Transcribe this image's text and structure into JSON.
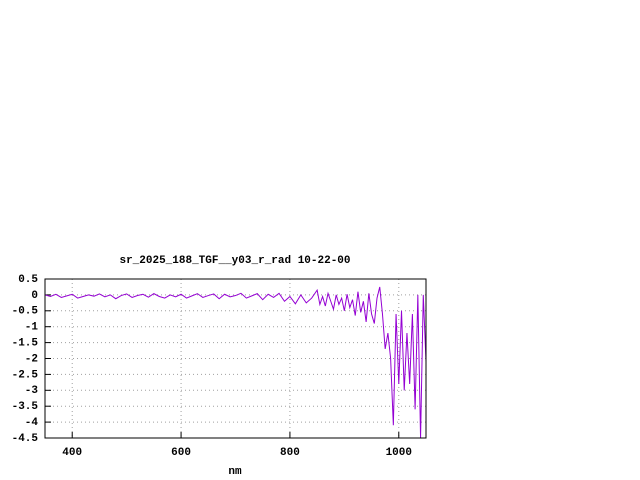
{
  "chart_data": {
    "type": "line",
    "title": "sr_2025_188_TGF__y03_r_rad 10-22-00",
    "x_label": "nm",
    "x": [
      350,
      360,
      370,
      380,
      390,
      400,
      410,
      420,
      430,
      440,
      450,
      460,
      470,
      480,
      490,
      500,
      510,
      520,
      530,
      540,
      550,
      560,
      570,
      580,
      590,
      600,
      610,
      620,
      630,
      640,
      650,
      660,
      670,
      680,
      690,
      700,
      710,
      720,
      730,
      740,
      750,
      760,
      770,
      780,
      790,
      800,
      810,
      820,
      830,
      840,
      850,
      855,
      860,
      865,
      870,
      875,
      880,
      885,
      890,
      895,
      900,
      905,
      910,
      915,
      920,
      925,
      930,
      935,
      940,
      945,
      950,
      955,
      960,
      965,
      970,
      975,
      980,
      985,
      990,
      995,
      1000,
      1005,
      1010,
      1015,
      1020,
      1025,
      1030,
      1035,
      1040,
      1045,
      1050
    ],
    "values": [
      0.0,
      -0.05,
      0.02,
      -0.08,
      -0.03,
      0.02,
      -0.1,
      -0.05,
      0.0,
      -0.04,
      0.03,
      -0.06,
      0.0,
      -0.12,
      -0.02,
      0.03,
      -0.08,
      -0.02,
      0.02,
      -0.07,
      0.04,
      -0.05,
      -0.1,
      0.0,
      -0.06,
      0.02,
      -0.1,
      -0.03,
      0.04,
      -0.08,
      -0.02,
      0.03,
      -0.12,
      0.02,
      -0.06,
      -0.02,
      0.05,
      -0.1,
      -0.03,
      0.04,
      -0.15,
      0.02,
      -0.08,
      0.05,
      -0.2,
      -0.05,
      -0.28,
      0.0,
      -0.25,
      -0.1,
      0.15,
      -0.3,
      -0.05,
      -0.35,
      0.05,
      -0.2,
      -0.45,
      0.0,
      -0.3,
      -0.1,
      -0.5,
      0.02,
      -0.4,
      -0.15,
      -0.65,
      0.1,
      -0.55,
      -0.2,
      -0.85,
      0.05,
      -0.6,
      -0.9,
      -0.1,
      0.25,
      -0.6,
      -1.7,
      -1.2,
      -2.0,
      -4.1,
      -0.6,
      -2.8,
      -0.5,
      -3.0,
      -1.2,
      -2.8,
      -0.6,
      -3.6,
      0.0,
      -4.5,
      0.0,
      -2.1
    ],
    "color": "#9400d3",
    "xlim": [
      350,
      1050
    ],
    "xticks": [
      400,
      600,
      800,
      1000
    ],
    "ylim": [
      -4.5,
      0.5
    ],
    "yticks": [
      0.5,
      0,
      -0.5,
      -1,
      -1.5,
      -2,
      -2.5,
      -3,
      -3.5,
      -4,
      -4.5
    ],
    "grid": true
  }
}
